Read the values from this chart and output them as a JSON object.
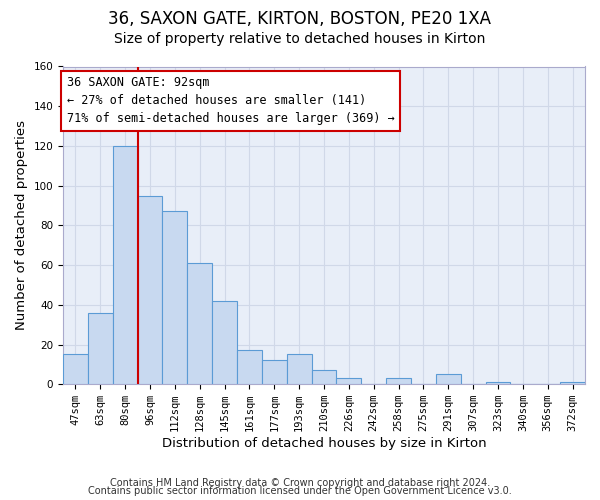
{
  "title": "36, SAXON GATE, KIRTON, BOSTON, PE20 1XA",
  "subtitle": "Size of property relative to detached houses in Kirton",
  "xlabel": "Distribution of detached houses by size in Kirton",
  "ylabel": "Number of detached properties",
  "bin_labels": [
    "47sqm",
    "63sqm",
    "80sqm",
    "96sqm",
    "112sqm",
    "128sqm",
    "145sqm",
    "161sqm",
    "177sqm",
    "193sqm",
    "210sqm",
    "226sqm",
    "242sqm",
    "258sqm",
    "275sqm",
    "291sqm",
    "307sqm",
    "323sqm",
    "340sqm",
    "356sqm",
    "372sqm"
  ],
  "bar_heights": [
    15,
    36,
    120,
    95,
    87,
    61,
    42,
    17,
    12,
    15,
    7,
    3,
    0,
    3,
    0,
    5,
    0,
    1,
    0,
    0,
    1
  ],
  "bar_color": "#c8d9f0",
  "bar_edge_color": "#5b9bd5",
  "vline_x": 3.0,
  "vline_color": "#cc0000",
  "ylim": [
    0,
    160
  ],
  "yticks": [
    0,
    20,
    40,
    60,
    80,
    100,
    120,
    140,
    160
  ],
  "annotation_title": "36 SAXON GATE: 92sqm",
  "annotation_line1": "← 27% of detached houses are smaller (141)",
  "annotation_line2": "71% of semi-detached houses are larger (369) →",
  "annotation_box_color": "#ffffff",
  "annotation_box_edge": "#cc0000",
  "footer1": "Contains HM Land Registry data © Crown copyright and database right 2024.",
  "footer2": "Contains public sector information licensed under the Open Government Licence v3.0.",
  "background_color": "#ffffff",
  "grid_color": "#d0d8e8",
  "title_fontsize": 12,
  "subtitle_fontsize": 10,
  "axis_label_fontsize": 9.5,
  "tick_fontsize": 7.5,
  "annotation_fontsize": 8.5,
  "footer_fontsize": 7
}
